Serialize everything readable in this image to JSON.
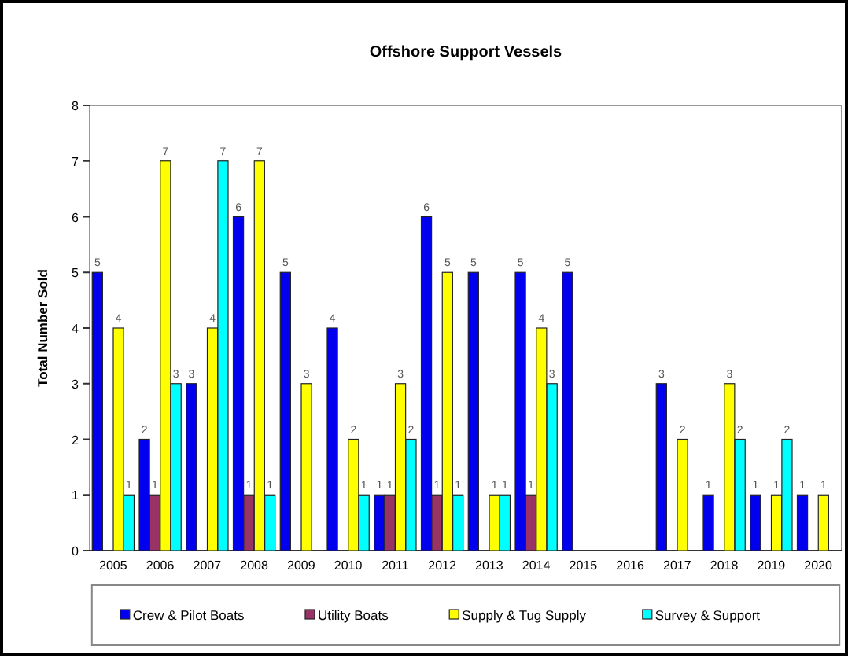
{
  "chart_data": {
    "type": "bar",
    "title": "Offshore Support Vessels",
    "ylabel": "Total Number Sold",
    "categories": [
      "2005",
      "2006",
      "2007",
      "2008",
      "2009",
      "2010",
      "2011",
      "2012",
      "2013",
      "2014",
      "2015",
      "2016",
      "2017",
      "2018",
      "2019",
      "2020"
    ],
    "series": [
      {
        "name": "Crew & Pilot Boats",
        "color": "#0000ee",
        "values": [
          5,
          2,
          3,
          6,
          5,
          4,
          1,
          6,
          5,
          5,
          5,
          null,
          3,
          1,
          1,
          1
        ]
      },
      {
        "name": "Utility Boats",
        "color": "#993366",
        "values": [
          null,
          1,
          null,
          1,
          null,
          null,
          1,
          1,
          null,
          1,
          null,
          null,
          null,
          null,
          null,
          null
        ]
      },
      {
        "name": "Supply & Tug Supply",
        "color": "#ffff00",
        "values": [
          4,
          7,
          4,
          7,
          3,
          2,
          3,
          5,
          1,
          4,
          null,
          null,
          2,
          3,
          1,
          1
        ]
      },
      {
        "name": "Survey & Support",
        "color": "#00ffff",
        "values": [
          1,
          3,
          7,
          1,
          null,
          1,
          2,
          1,
          1,
          3,
          null,
          null,
          null,
          2,
          2,
          null
        ]
      }
    ],
    "ylim": [
      0,
      8
    ],
    "yticks": [
      0,
      1,
      2,
      3,
      4,
      5,
      6,
      7,
      8
    ],
    "data_labels": true,
    "legend": "bottom",
    "grid": false
  }
}
